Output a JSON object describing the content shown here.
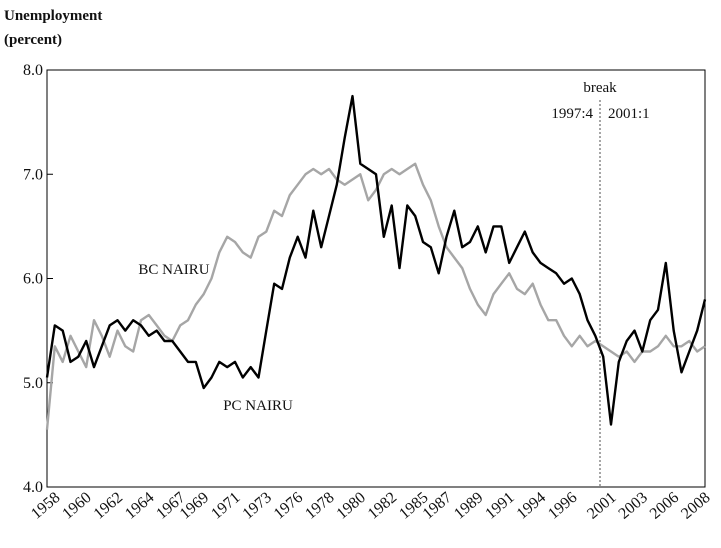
{
  "chart_data": {
    "type": "line",
    "ylabel": [
      "Unemployment",
      "(percent)"
    ],
    "categories": [
      null,
      "1958",
      null,
      null,
      null,
      "1960",
      null,
      null,
      null,
      "1962",
      null,
      null,
      null,
      "1964",
      null,
      null,
      null,
      "1967",
      null,
      null,
      "1969",
      null,
      null,
      null,
      "1971",
      null,
      null,
      null,
      "1973",
      null,
      null,
      null,
      "1976",
      null,
      null,
      null,
      "1978",
      null,
      null,
      null,
      "1980",
      null,
      null,
      null,
      "1982",
      null,
      null,
      null,
      "1985",
      null,
      null,
      "1987",
      null,
      null,
      null,
      "1989",
      null,
      null,
      null,
      "1991",
      null,
      null,
      null,
      "1994",
      null,
      null,
      null,
      "1996",
      null,
      null,
      null,
      null,
      "2001",
      null,
      null,
      null,
      "2003",
      null,
      null,
      null,
      "2006",
      null,
      null,
      null,
      "2008"
    ],
    "series": [
      {
        "name": "PC NAIRU",
        "color": "#000000",
        "values": [
          5.05,
          5.55,
          5.5,
          5.2,
          5.25,
          5.4,
          5.15,
          5.35,
          5.55,
          5.6,
          5.5,
          5.6,
          5.55,
          5.45,
          5.5,
          5.4,
          5.4,
          5.3,
          5.2,
          5.2,
          4.95,
          5.05,
          5.2,
          5.15,
          5.2,
          5.05,
          5.15,
          5.05,
          5.5,
          5.95,
          5.9,
          6.2,
          6.4,
          6.2,
          6.65,
          6.3,
          6.6,
          6.9,
          7.35,
          7.75,
          7.1,
          7.05,
          7.0,
          6.4,
          6.7,
          6.1,
          6.7,
          6.6,
          6.35,
          6.3,
          6.05,
          6.4,
          6.65,
          6.3,
          6.35,
          6.5,
          6.25,
          6.5,
          6.5,
          6.15,
          6.3,
          6.45,
          6.25,
          6.15,
          6.1,
          6.05,
          5.95,
          6.0,
          5.85,
          5.6,
          5.45,
          5.25,
          4.6,
          5.2,
          5.4,
          5.5,
          5.3,
          5.6,
          5.7,
          6.15,
          5.5,
          5.1,
          5.3,
          5.5,
          5.8
        ]
      },
      {
        "name": "BC NAIRU",
        "color": "#a6a6a6",
        "values": [
          4.55,
          5.35,
          5.2,
          5.45,
          5.3,
          5.15,
          5.6,
          5.45,
          5.25,
          5.5,
          5.35,
          5.3,
          5.6,
          5.65,
          5.55,
          5.45,
          5.4,
          5.55,
          5.6,
          5.75,
          5.85,
          6.0,
          6.25,
          6.4,
          6.35,
          6.25,
          6.2,
          6.4,
          6.45,
          6.65,
          6.6,
          6.8,
          6.9,
          7.0,
          7.05,
          7.0,
          7.05,
          6.95,
          6.9,
          6.95,
          7.0,
          6.75,
          6.85,
          7.0,
          7.05,
          7.0,
          7.05,
          7.1,
          6.9,
          6.75,
          6.5,
          6.3,
          6.2,
          6.1,
          5.9,
          5.75,
          5.65,
          5.85,
          5.95,
          6.05,
          5.9,
          5.85,
          5.95,
          5.75,
          5.6,
          5.6,
          5.45,
          5.35,
          5.45,
          5.35,
          5.4,
          5.35,
          5.3,
          5.25,
          5.3,
          5.2,
          5.3,
          5.3,
          5.35,
          5.45,
          5.35,
          5.35,
          5.4,
          5.3,
          5.35
        ]
      }
    ],
    "ylim": [
      4,
      8
    ],
    "yticks": [
      {
        "value": 4,
        "label": "4.0"
      },
      {
        "value": 5,
        "label": "5.0"
      },
      {
        "value": 6,
        "label": "6.0"
      },
      {
        "value": 7,
        "label": "7.0"
      },
      {
        "value": 8,
        "label": "8.0"
      }
    ],
    "annotations": [
      "break",
      "1997:4",
      "2001:1"
    ]
  }
}
